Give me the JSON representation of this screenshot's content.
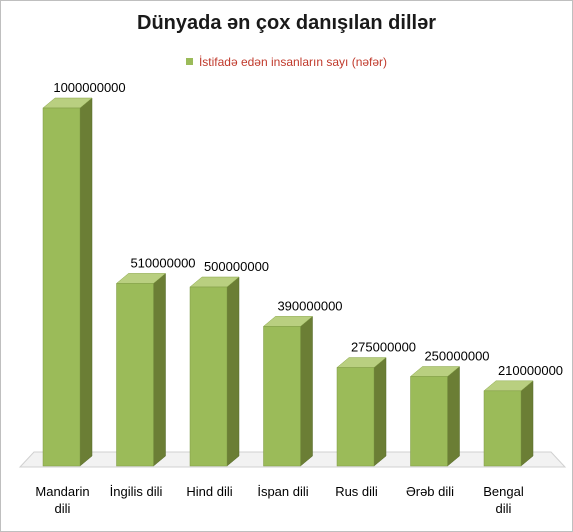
{
  "chart_data": {
    "type": "bar",
    "title": "Dünyada ən çox danışılan dillər",
    "categories": [
      "Mandarin dili",
      "İngilis dili",
      "Hind dili",
      "İspan dili",
      "Rus dili",
      "Ərəb dili",
      "Bengal dili"
    ],
    "category_lines": [
      [
        "Mandarin",
        "dili"
      ],
      [
        "İngilis dili"
      ],
      [
        "Hind dili"
      ],
      [
        "İspan dili"
      ],
      [
        "Rus dili"
      ],
      [
        "Ərəb dili"
      ],
      [
        "Bengal",
        "dili"
      ]
    ],
    "series": [
      {
        "name": "İstifadə edən insanların sayı (nəfər)",
        "values": [
          1000000000,
          510000000,
          500000000,
          390000000,
          275000000,
          250000000,
          210000000
        ],
        "labels": [
          "1000000000",
          "510000000",
          "500000000",
          "390000000",
          "275000000",
          "250000000",
          "210000000"
        ]
      }
    ],
    "ylim": [
      0,
      1000000000
    ],
    "legend_position": "top",
    "grid": false,
    "colors": {
      "bar_front": "#9bbb59",
      "bar_side": "#6b7e35",
      "bar_top": "#b9cf80",
      "floor": "#f2f2f2",
      "legend_text": "#c0392b"
    }
  }
}
